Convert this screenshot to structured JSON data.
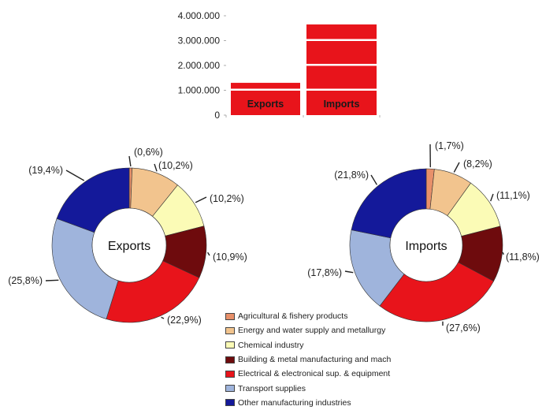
{
  "colors": {
    "bar": "#e8141b",
    "agricultural": "#e8906a",
    "energy": "#f2c48e",
    "chemical": "#fbfbb6",
    "building": "#6e0b0d",
    "electrical": "#e8141b",
    "transport": "#9fb4dc",
    "other": "#14199a"
  },
  "chart_data": [
    {
      "type": "bar",
      "categories": [
        "Exports",
        "Imports"
      ],
      "values": [
        1300000,
        3650000
      ],
      "ylim": [
        0,
        4000000
      ],
      "y_ticks": [
        0,
        1000000,
        2000000,
        3000000,
        4000000
      ],
      "y_tick_labels": [
        "0",
        "1.000.000",
        "2.000.000",
        "3.000.000",
        "4.000.000"
      ],
      "grid": "white gridlines over bars"
    },
    {
      "type": "pie",
      "center_label": "Exports",
      "labels": [
        "Agricultural & fishery products",
        "Energy and water supply and metallurgy",
        "Chemical industry",
        "Building & metal manufacturing and mach",
        "Electrical & electronical sup. & equipment",
        "Transport supplies",
        "Other manufacturing industries"
      ],
      "values": [
        0.6,
        10.2,
        10.2,
        10.9,
        22.9,
        25.8,
        19.4
      ],
      "value_labels": [
        "(0,6%)",
        "(10,2%)",
        "(10,2%)",
        "(10,9%)",
        "(22,9%)",
        "(25,8%)",
        "(19,4%)"
      ]
    },
    {
      "type": "pie",
      "center_label": "Imports",
      "labels": [
        "Agricultural & fishery products",
        "Energy and water supply and metallurgy",
        "Chemical industry",
        "Building & metal manufacturing and mach",
        "Electrical & electronical sup. & equipment",
        "Transport supplies",
        "Other manufacturing industries"
      ],
      "values": [
        1.7,
        8.2,
        11.1,
        11.8,
        27.6,
        17.8,
        21.8
      ],
      "value_labels": [
        "(1,7%)",
        "(8,2%)",
        "(11,1%)",
        "(11,8%)",
        "(27,6%)",
        "(17,8%)",
        "(21,8%)"
      ]
    }
  ],
  "legend": {
    "items": [
      {
        "label": "Agricultural & fishery products",
        "color": "#e8906a"
      },
      {
        "label": "Energy and water supply and metallurgy",
        "color": "#f2c48e"
      },
      {
        "label": "Chemical industry",
        "color": "#fbfbb6"
      },
      {
        "label": "Building & metal manufacturing and mach",
        "color": "#6e0b0d"
      },
      {
        "label": "Electrical & electronical sup. & equipment",
        "color": "#e8141b"
      },
      {
        "label": "Transport supplies",
        "color": "#9fb4dc"
      },
      {
        "label": "Other manufacturing industries",
        "color": "#14199a"
      }
    ]
  }
}
